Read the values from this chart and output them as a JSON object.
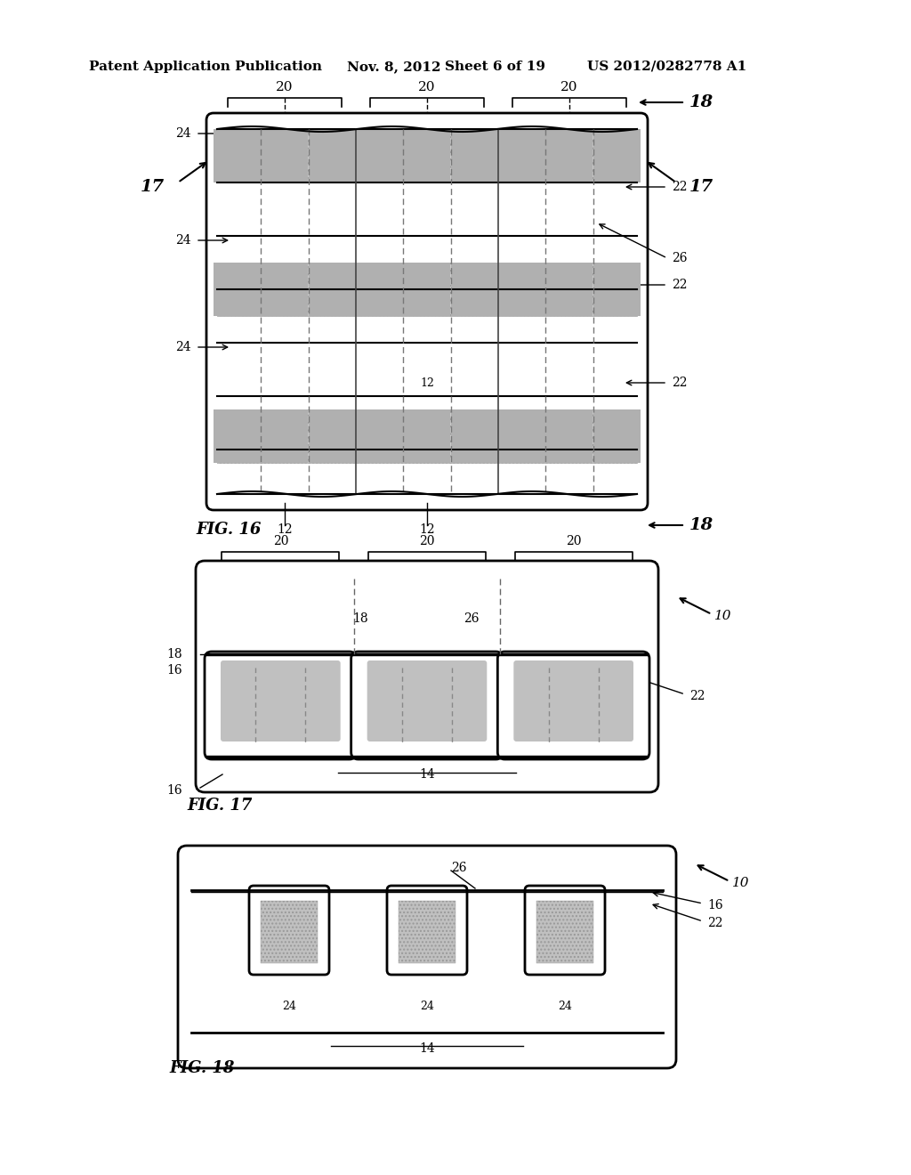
{
  "bg_color": "#ffffff",
  "header_text": "Patent Application Publication",
  "header_date": "Nov. 8, 2012",
  "header_sheet": "Sheet 6 of 19",
  "header_patent": "US 2012/0282778 A1",
  "fig16_label": "FIG. 16",
  "fig17_label": "FIG. 17",
  "fig18_label": "FIG. 18",
  "hatch_color": "#aaaaaa",
  "line_color": "#000000",
  "grid_color": "#cccccc"
}
